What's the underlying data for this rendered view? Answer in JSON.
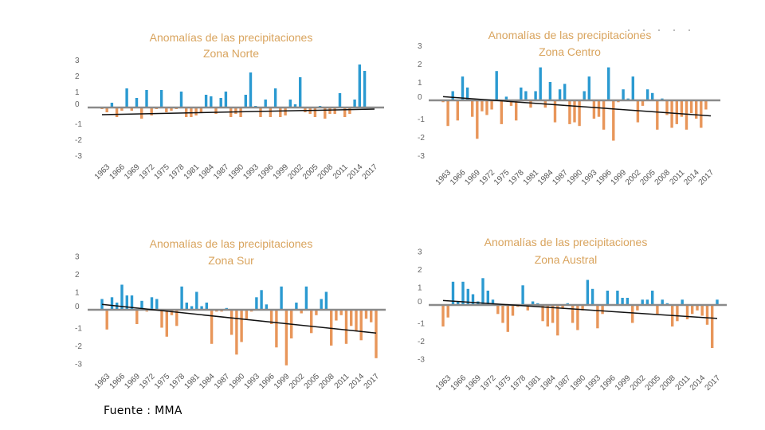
{
  "source": "Fuente : MMA",
  "colors": {
    "positive": "#2b9ad1",
    "negative": "#e8965a",
    "trend": "#111111",
    "zero_line": "#8a8a8a",
    "title": "#d9a45e"
  },
  "chart_data": [
    {
      "type": "bar",
      "title": "Anomalías de las precipitaciones",
      "subtitle": "Zona Norte",
      "xlabel": "",
      "ylabel": "",
      "ylim": [
        -3,
        3
      ],
      "yticks": [
        "3",
        "2",
        "1",
        "0",
        "-1",
        "-2",
        "-3"
      ],
      "xtick_labels": [
        "1963",
        "1966",
        "1969",
        "1972",
        "1975",
        "1978",
        "1981",
        "1984",
        "1987",
        "1990",
        "1993",
        "1996",
        "1999",
        "2002",
        "2005",
        "2008",
        "2011",
        "2014",
        "2017"
      ],
      "x_start": 1962,
      "values": [
        -0.1,
        -0.3,
        0.3,
        -0.6,
        -0.2,
        1.2,
        -0.2,
        0.6,
        -0.7,
        1.1,
        -0.5,
        -0.1,
        1.1,
        -0.3,
        -0.2,
        -0.1,
        1.0,
        -0.6,
        -0.6,
        -0.5,
        -0.3,
        0.8,
        0.7,
        -0.4,
        0.6,
        1.0,
        -0.6,
        -0.4,
        -0.6,
        0.8,
        2.2,
        0.1,
        -0.6,
        0.5,
        -0.6,
        1.2,
        -0.6,
        -0.5,
        0.5,
        0.2,
        1.9,
        -0.3,
        -0.4,
        -0.6,
        0.1,
        -0.7,
        -0.4,
        -0.4,
        0.9,
        -0.6,
        -0.4,
        0.5,
        2.7,
        2.3,
        0,
        0
      ],
      "trend": [
        -0.45,
        -0.1
      ]
    },
    {
      "type": "bar",
      "title": "Anomalías de las precipitaciones",
      "subtitle": "Zona Centro",
      "xlabel": "",
      "ylabel": "",
      "ylim": [
        -3,
        3
      ],
      "yticks": [
        "3",
        "2",
        "1",
        "0",
        "-1",
        "-2",
        "-3"
      ],
      "xtick_labels": [
        "1963",
        "1966",
        "1969",
        "1972",
        "1975",
        "1978",
        "1981",
        "1984",
        "1987",
        "1990",
        "1993",
        "1996",
        "1999",
        "2002",
        "2005",
        "2008",
        "2011",
        "2014",
        "2017"
      ],
      "x_start": 1962,
      "values": [
        -0.1,
        -1.4,
        0.5,
        -1.1,
        1.3,
        0.7,
        -0.9,
        -2.1,
        -0.6,
        -0.8,
        -0.5,
        1.6,
        -1.3,
        0.2,
        -0.3,
        -1.1,
        0.7,
        0.5,
        -0.4,
        0.5,
        1.8,
        -0.4,
        1.0,
        -1.2,
        0.6,
        0.9,
        -1.3,
        -1.2,
        -1.4,
        0.5,
        1.3,
        -1.0,
        -0.9,
        -1.6,
        1.8,
        -2.2,
        -0.1,
        0.6,
        0.1,
        1.3,
        -1.2,
        -0.3,
        0.6,
        0.4,
        -1.6,
        0.1,
        -0.8,
        -1.5,
        -1.3,
        -0.9,
        -1.6,
        -0.7,
        -1.0,
        -1.5,
        -0.5,
        0
      ],
      "trend": [
        0.2,
        -0.85
      ]
    },
    {
      "type": "bar",
      "title": "Anomalías de las precipitaciones",
      "subtitle": "Zona Sur",
      "xlabel": "",
      "ylabel": "",
      "ylim": [
        -3,
        3
      ],
      "yticks": [
        "3",
        "2",
        "1",
        "0",
        "-1",
        "-2",
        "-3"
      ],
      "xtick_labels": [
        "1963",
        "1966",
        "1969",
        "1972",
        "1975",
        "1978",
        "1981",
        "1984",
        "1987",
        "1990",
        "1993",
        "1996",
        "1999",
        "2002",
        "2005",
        "2008",
        "2011",
        "2014",
        "2017"
      ],
      "x_start": 1962,
      "values": [
        0.6,
        -1.1,
        0.7,
        0.4,
        1.4,
        0.8,
        0.8,
        -0.8,
        0.5,
        -0.1,
        0.7,
        0.6,
        -1.0,
        -1.5,
        -0.3,
        -0.9,
        1.3,
        0.4,
        0.2,
        1.0,
        0.2,
        0.4,
        -1.9,
        -0.1,
        -0.1,
        0.1,
        -1.4,
        -2.5,
        -1.8,
        -0.5,
        -0.1,
        0.7,
        1.1,
        0.3,
        -0.8,
        -2.1,
        1.3,
        -3.1,
        -1.6,
        0.4,
        -0.2,
        1.3,
        -1.3,
        -0.3,
        0.6,
        1.0,
        -2.0,
        -0.6,
        -0.3,
        -1.9,
        -0.9,
        -1.2,
        -1.7,
        -0.5,
        -0.7,
        -2.7
      ],
      "trend": [
        0.3,
        -1.3
      ]
    },
    {
      "type": "bar",
      "title": "Anomalías de las precipitaciones",
      "subtitle": "Zona Austral",
      "xlabel": "",
      "ylabel": "",
      "ylim": [
        -3,
        3
      ],
      "yticks": [
        "3",
        "2",
        "1",
        "0",
        "-1",
        "-2",
        "-3"
      ],
      "xtick_labels": [
        "1963",
        "1966",
        "1969",
        "1972",
        "1975",
        "1978",
        "1981",
        "1984",
        "1987",
        "1990",
        "1993",
        "1996",
        "1999",
        "2002",
        "2005",
        "2008",
        "2011",
        "2014",
        "2017"
      ],
      "x_start": 1962,
      "values": [
        -1.2,
        -0.7,
        1.3,
        0.2,
        1.3,
        0.9,
        0.6,
        0.2,
        1.5,
        0.8,
        0.3,
        -0.5,
        -1.0,
        -1.5,
        -0.6,
        -0.1,
        1.1,
        -0.3,
        0.2,
        0.1,
        -0.9,
        -1.2,
        -1.0,
        -1.7,
        -0.2,
        0.1,
        -1.0,
        -1.4,
        -0.3,
        1.4,
        0.9,
        -1.3,
        -0.5,
        0.8,
        0,
        0.8,
        0.4,
        0.4,
        -1.0,
        -0.3,
        0.3,
        0.3,
        0.8,
        -0.5,
        0.3,
        0.1,
        -1.2,
        -0.9,
        0.3,
        -0.8,
        -0.5,
        -0.3,
        -0.6,
        -1.1,
        -2.4,
        0.3
      ],
      "trend": [
        0.25,
        -0.75
      ]
    }
  ]
}
